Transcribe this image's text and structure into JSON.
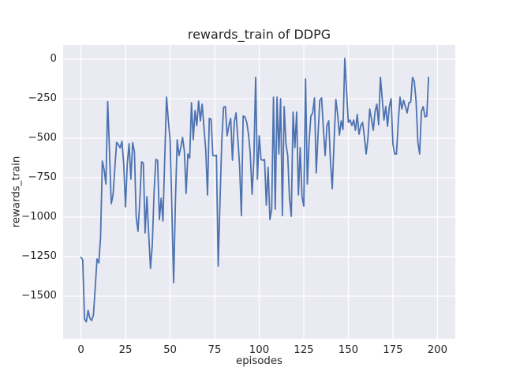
{
  "figure": {
    "background": "#FFFFFF",
    "axes_background": "#EAEAF2",
    "grid_color": "#FFFFFF",
    "text_color": "#262626"
  },
  "chart_data": {
    "type": "line",
    "title": "rewards_train of DDPG",
    "xlabel": "episodes",
    "ylabel": "rewards_train",
    "grid": true,
    "legend_position": "none",
    "xlim": [
      -10,
      210
    ],
    "ylim": [
      -1770,
      90
    ],
    "x_tick_values": [
      0,
      25,
      50,
      75,
      100,
      125,
      150,
      175,
      200
    ],
    "x_tick_labels": [
      "0",
      "25",
      "50",
      "75",
      "100",
      "125",
      "150",
      "175",
      "200"
    ],
    "y_tick_values": [
      0,
      -250,
      -500,
      -750,
      -1000,
      -1250,
      -1500
    ],
    "y_tick_labels": [
      "0",
      "−250",
      "−500",
      "−750",
      "−1000",
      "−1250",
      "−1500"
    ],
    "series": [
      {
        "name": "rewards_train of DDPG",
        "color": "#4C72B0",
        "line_width": 1.8,
        "x": "episode-index-starting-at-0",
        "values": [
          -1255,
          -1270,
          -1645,
          -1663,
          -1590,
          -1640,
          -1655,
          -1620,
          -1450,
          -1265,
          -1290,
          -1128,
          -645,
          -700,
          -790,
          -268,
          -580,
          -915,
          -860,
          -690,
          -527,
          -540,
          -562,
          -520,
          -665,
          -935,
          -660,
          -535,
          -760,
          -528,
          -585,
          -1000,
          -1090,
          -900,
          -650,
          -657,
          -1100,
          -870,
          -1105,
          -1325,
          -1180,
          -850,
          -635,
          -640,
          -1015,
          -880,
          -1025,
          -630,
          -240,
          -385,
          -510,
          -950,
          -1415,
          -900,
          -510,
          -610,
          -560,
          -495,
          -580,
          -850,
          -600,
          -625,
          -275,
          -510,
          -325,
          -420,
          -265,
          -390,
          -285,
          -430,
          -575,
          -860,
          -375,
          -380,
          -610,
          -612,
          -608,
          -1310,
          -900,
          -520,
          -305,
          -300,
          -485,
          -420,
          -375,
          -640,
          -400,
          -340,
          -500,
          -675,
          -990,
          -360,
          -365,
          -400,
          -475,
          -600,
          -855,
          -640,
          -115,
          -760,
          -485,
          -635,
          -640,
          -635,
          -925,
          -685,
          -1015,
          -950,
          -240,
          -950,
          -240,
          -600,
          -250,
          -990,
          -300,
          -535,
          -610,
          -880,
          -995,
          -335,
          -560,
          -335,
          -860,
          -560,
          -870,
          -930,
          -125,
          -790,
          -520,
          -360,
          -340,
          -245,
          -720,
          -480,
          -260,
          -245,
          -440,
          -610,
          -420,
          -390,
          -650,
          -820,
          -520,
          -255,
          -350,
          -480,
          -390,
          -445,
          5,
          -200,
          -400,
          -385,
          -420,
          -385,
          -450,
          -350,
          -475,
          -420,
          -400,
          -490,
          -600,
          -500,
          -315,
          -380,
          -450,
          -330,
          -285,
          -415,
          -115,
          -250,
          -385,
          -300,
          -425,
          -300,
          -250,
          -535,
          -600,
          -600,
          -400,
          -240,
          -315,
          -260,
          -300,
          -340,
          -275,
          -272,
          -115,
          -140,
          -265,
          -525,
          -600,
          -330,
          -300,
          -365,
          -360,
          -115
        ]
      }
    ]
  }
}
